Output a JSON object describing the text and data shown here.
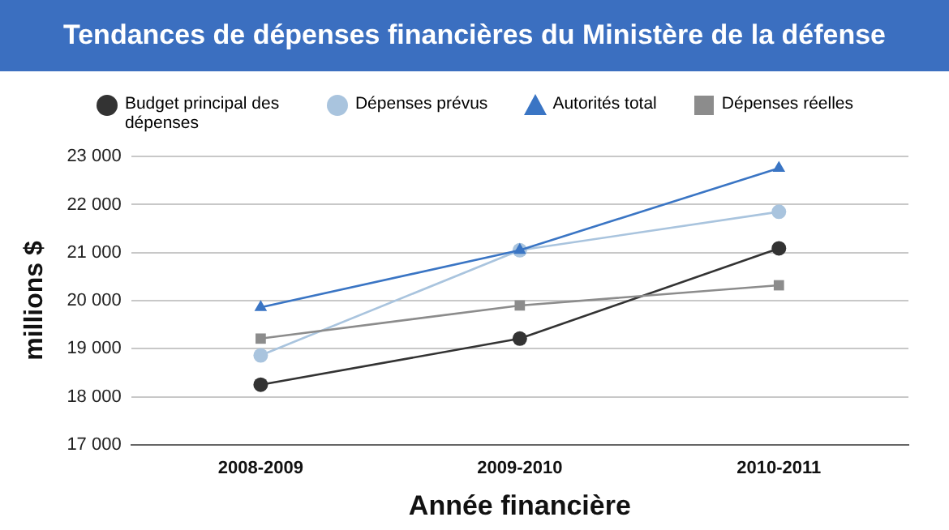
{
  "chart_data": {
    "type": "line",
    "title": "Tendances de dépenses financières du Ministère de la défense",
    "xlabel": "Année financière",
    "ylabel": "millions $",
    "categories": [
      "2008-2009",
      "2009-2010",
      "2010-2011"
    ],
    "series": [
      {
        "name": "Budget principal des dépenses",
        "color": "#333333",
        "marker": "circle",
        "values": [
          18250,
          19210,
          21090
        ]
      },
      {
        "name": "Dépenses prévus",
        "color": "#a9c4de",
        "marker": "circle",
        "values": [
          18860,
          21050,
          21850
        ]
      },
      {
        "name": "Autorités total",
        "color": "#3a75c4",
        "marker": "triangle",
        "values": [
          19860,
          21050,
          22760
        ]
      },
      {
        "name": "Dépenses réelles",
        "color": "#8c8c8c",
        "marker": "square",
        "values": [
          19210,
          19900,
          20320
        ]
      }
    ],
    "ylim": [
      17000,
      23000
    ],
    "yticks": [
      {
        "value": 17000,
        "label": "17 000"
      },
      {
        "value": 18000,
        "label": "18 000"
      },
      {
        "value": 19000,
        "label": "19 000"
      },
      {
        "value": 20000,
        "label": "20 000"
      },
      {
        "value": 21000,
        "label": "21 000"
      },
      {
        "value": 22000,
        "label": "22 000"
      },
      {
        "value": 23000,
        "label": "23 000"
      }
    ],
    "grid": "y",
    "legend": "top"
  }
}
